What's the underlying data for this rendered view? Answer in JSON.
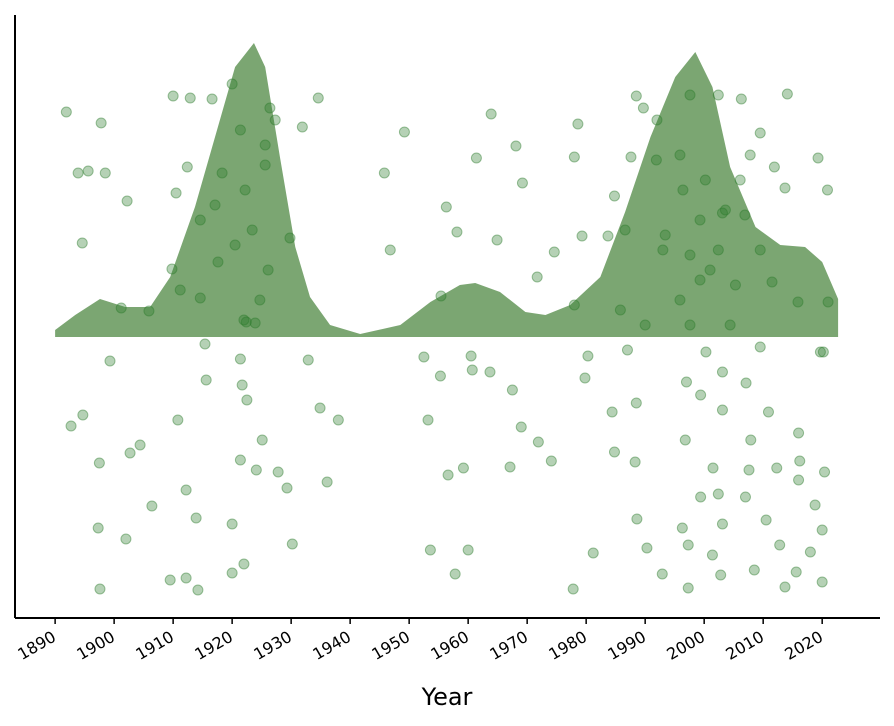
{
  "chart_data": [
    {
      "type": "area",
      "xlabel": "Year",
      "color": "#7ba672",
      "xlim": [
        1883.2,
        2029.8
      ],
      "ylim": [
        -2.81,
        3.22
      ],
      "xticks": [
        1890,
        1900,
        1910,
        1920,
        1930,
        1940,
        1950,
        1960,
        1970,
        1980,
        1990,
        2000,
        2010,
        2020
      ],
      "x": [
        1890,
        1893.4,
        1897.6,
        1901.9,
        1906.1,
        1909.5,
        1913.7,
        1917.1,
        1920.5,
        1923.7,
        1925.6,
        1928.1,
        1930.7,
        1933.2,
        1936.6,
        1941.7,
        1948.5,
        1953.6,
        1958.6,
        1961.2,
        1965.4,
        1969.7,
        1973.1,
        1977.3,
        1982.4,
        1986.6,
        1990.9,
        1995.1,
        1998.5,
        2001.4,
        2004.4,
        2008.7,
        2012.9,
        2017.1,
        2020.0,
        2022.7
      ],
      "values": [
        0.07,
        0.22,
        0.38,
        0.3,
        0.3,
        0.6,
        1.3,
        2.0,
        2.7,
        2.94,
        2.7,
        1.8,
        0.9,
        0.4,
        0.12,
        0.03,
        0.12,
        0.35,
        0.52,
        0.54,
        0.45,
        0.25,
        0.22,
        0.32,
        0.6,
        1.25,
        2.0,
        2.6,
        2.85,
        2.5,
        1.7,
        1.1,
        0.92,
        0.9,
        0.75,
        0.38
      ]
    },
    {
      "type": "scatter",
      "color": "#2a7a2a",
      "x": [
        1891.9,
        1897.8,
        1893.9,
        1895.6,
        1898.5,
        1902.2,
        1894.6,
        1901.2,
        1905.9,
        1899.3,
        1894.7,
        1892.7,
        1897.5,
        1902.7,
        1904.4,
        1897.3,
        1902.0,
        1897.6,
        1906.4,
        1910.0,
        1912.9,
        1916.6,
        1920.0,
        1912.4,
        1910.5,
        1909.8,
        1911.2,
        1914.6,
        1917.1,
        1915.4,
        1915.6,
        1910.8,
        1912.2,
        1913.9,
        1909.5,
        1912.2,
        1914.2,
        1920.0,
        1920.0,
        1922.0,
        1921.4,
        1921.7,
        1922.5,
        1921.4,
        1924.1,
        1925.1,
        1926.4,
        1925.6,
        1923.4,
        1922.4,
        1929.8,
        1927.8,
        1929.3,
        1930.2,
        1934.6,
        1931.9,
        1932.9,
        1934.9,
        1938.0,
        1936.1,
        1945.8,
        1946.8,
        1949.2,
        1952.5,
        1953.2,
        1955.3,
        1953.6,
        1957.8,
        1960.0,
        1956.6,
        1959.2,
        1955.4,
        1958.1,
        1956.3,
        1961.4,
        1963.9,
        1968.1,
        1969.2,
        1964.9,
        1971.7,
        1974.6,
        1960.5,
        1960.7,
        1963.7,
        1967.5,
        1969.0,
        1971.9,
        1974.1,
        1967.1,
        1977.8,
        1981.2,
        1978.6,
        1978.0,
        1979.3,
        1978.0,
        1980.3,
        1979.8,
        1988.5,
        1989.7,
        1992.0,
        1987.6,
        1991.9,
        1984.8,
        1983.7,
        1986.6,
        1985.8,
        1990.0,
        1987.0,
        1984.4,
        1988.5,
        1984.8,
        1988.3,
        1988.6,
        1990.3,
        1992.9,
        1997.3,
        1997.6,
        2002.4,
        2006.3,
        2014.1,
        2007.8,
        2011.9,
        2013.7,
        2020.9,
        2019.3,
        2009.5,
        1996.4,
        1999.3,
        2003.1,
        2006.9,
        2009.5,
        1997.6,
        2001.0,
        2005.3,
        2011.5,
        2015.9,
        2021.0,
        1997.6,
        2004.4,
        2019.7,
        2009.5,
        2000.3,
        1997.0,
        2003.1,
        2007.1,
        1999.4,
        2003.1,
        2010.9,
        1996.8,
        2007.9,
        2016.0,
        2001.5,
        2007.6,
        2012.3,
        2016.2,
        2020.4,
        1999.4,
        2002.4,
        2007.0,
        2016.0,
        1996.3,
        2003.1,
        2010.5,
        2018.8,
        1997.3,
        2001.4,
        2012.8,
        2020.0,
        2002.8,
        2008.5,
        2015.6,
        2013.7,
        2020.0,
        2018.0,
        2020.2,
        1921.4,
        1918.3,
        1922.2,
        1925.6,
        1920.5,
        1926.1,
        1924.7,
        1917.6,
        1914.6,
        1927.3,
        1922.0,
        1923.9,
        1995.9,
        2000.2,
        2003.6,
        1993.4,
        2006.1,
        1995.9,
        2002.4,
        1999.3,
        1993.0
      ],
      "values": [
        2.25,
        2.14,
        1.64,
        1.66,
        1.64,
        1.36,
        0.94,
        0.29,
        0.26,
        -0.24,
        -0.78,
        -0.89,
        -1.26,
        -1.16,
        -1.08,
        -1.91,
        -2.02,
        -2.52,
        -1.69,
        2.41,
        2.39,
        2.38,
        2.53,
        1.7,
        1.44,
        0.68,
        0.47,
        0.39,
        1.32,
        -0.07,
        -0.43,
        -0.83,
        -1.53,
        -1.81,
        -2.43,
        -2.41,
        -2.53,
        -1.87,
        -2.36,
        -2.27,
        -0.22,
        -0.48,
        -0.63,
        -1.23,
        -1.33,
        -1.03,
        2.29,
        1.92,
        1.07,
        0.15,
        0.99,
        -1.35,
        -1.51,
        -2.07,
        2.39,
        2.1,
        -0.23,
        -0.71,
        -0.83,
        -1.45,
        1.64,
        0.87,
        2.05,
        -0.2,
        -0.83,
        -0.39,
        -2.13,
        -2.37,
        -2.13,
        -1.38,
        -1.31,
        0.41,
        1.05,
        1.3,
        1.79,
        2.23,
        1.91,
        1.54,
        0.97,
        0.6,
        0.85,
        -0.19,
        -0.33,
        -0.35,
        -0.53,
        -0.9,
        -1.05,
        -1.24,
        -1.3,
        -2.52,
        -2.16,
        2.13,
        1.8,
        1.01,
        0.32,
        -0.19,
        -0.41,
        2.41,
        2.29,
        2.17,
        1.8,
        1.77,
        1.41,
        1.01,
        1.07,
        0.27,
        0.12,
        -0.13,
        -0.75,
        -0.66,
        -1.15,
        -1.25,
        -1.82,
        -2.11,
        -2.37,
        -2.51,
        2.42,
        2.42,
        2.38,
        2.43,
        1.82,
        1.7,
        1.49,
        1.47,
        1.79,
        2.04,
        1.47,
        1.17,
        1.24,
        1.22,
        0.87,
        0.82,
        0.67,
        0.52,
        0.55,
        0.35,
        0.35,
        0.12,
        0.12,
        -0.15,
        -0.1,
        -0.15,
        -0.45,
        -0.35,
        -0.46,
        -0.58,
        -0.73,
        -0.75,
        -1.03,
        -1.03,
        -0.96,
        -1.31,
        -1.33,
        -1.31,
        -1.24,
        -1.35,
        -1.6,
        -1.57,
        -1.6,
        -1.43,
        -1.91,
        -1.87,
        -1.83,
        -1.68,
        -2.08,
        -2.18,
        -2.08,
        -1.93,
        -2.38,
        -2.33,
        -2.35,
        -2.5,
        -2.45,
        -2.15,
        -0.15,
        2.07,
        1.64,
        1.47,
        1.72,
        0.92,
        0.67,
        0.37,
        0.75,
        1.17,
        2.17,
        0.17,
        0.14,
        1.82,
        1.57,
        1.27,
        1.02,
        1.57,
        0.37,
        0.87,
        0.57,
        0.87
      ]
    }
  ]
}
